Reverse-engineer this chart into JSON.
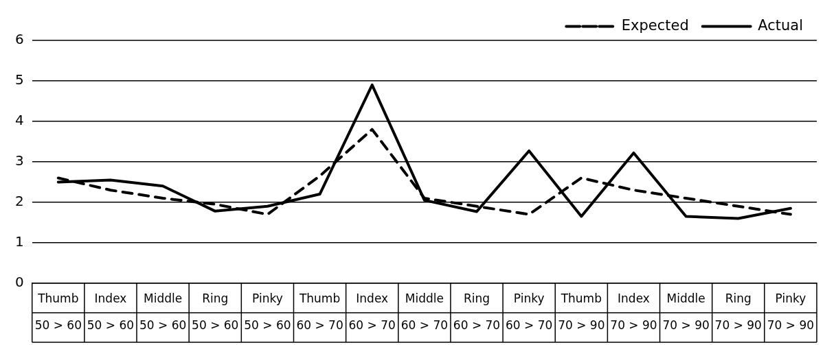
{
  "chart_data": {
    "type": "line",
    "categories": [
      "Thumb\n50 > 60",
      "Index\n50 > 60",
      "Middle\n50 > 60",
      "Ring\n50 > 60",
      "Pinky\n50 > 60",
      "Thumb\n60 > 70",
      "Index\n60 > 70",
      "Middle\n60 > 70",
      "Ring\n60 > 70",
      "Pinky\n60 > 70",
      "Thumb\n70 > 90",
      "Index\n70 > 90",
      "Middle\n70 > 90",
      "Ring\n70 > 90",
      "Pinky\n70 > 90"
    ],
    "series": [
      {
        "name": "Expected",
        "color": "#000000",
        "line_style": "dashed",
        "values": [
          2.6,
          2.3,
          2.1,
          1.95,
          1.7,
          2.65,
          3.8,
          2.1,
          1.9,
          1.7,
          2.6,
          2.3,
          2.1,
          1.9,
          1.7
        ]
      },
      {
        "name": "Actual",
        "color": "#000000",
        "line_style": "solid",
        "values": [
          2.5,
          2.55,
          2.4,
          1.78,
          1.9,
          2.2,
          4.9,
          2.05,
          1.77,
          3.27,
          1.65,
          3.22,
          1.65,
          1.6,
          1.85
        ]
      }
    ],
    "ylim": [
      0,
      6
    ],
    "yticks": [
      0,
      1,
      2,
      3,
      4,
      5,
      6
    ],
    "grid": "y",
    "legend": "top right",
    "marker": "none"
  }
}
